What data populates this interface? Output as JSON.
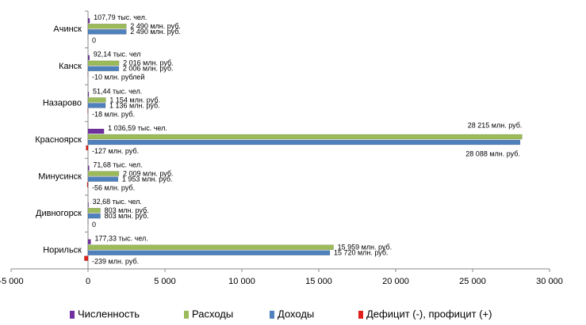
{
  "chart_data": {
    "type": "hbar",
    "categories": [
      "Ачинск",
      "Канск",
      "Назарово",
      "Красноярск",
      "Минусинск",
      "Дивногорск",
      "Норильск"
    ],
    "series": [
      {
        "name": "Численность",
        "color": "#7030a0",
        "values": [
          107.79,
          92.14,
          51.44,
          1036.59,
          71.68,
          32.68,
          177.33
        ],
        "value_labels": [
          "107,79 тыс. чел.",
          "92,14 тыс. чел",
          "51,44 тыс. чел.",
          "1 036,59 тыс. чел.",
          "71,68 тыс. чел.",
          "32,68 тыс. чел.",
          "177,33 тыс. чел."
        ]
      },
      {
        "name": "Расходы",
        "color": "#9bbb59",
        "values": [
          2490,
          2016,
          1154,
          28215,
          2009,
          803,
          15959
        ],
        "value_labels": [
          "2 490 млн. руб.",
          "2 016  млн. руб.",
          "1 154 млн. руб.",
          "28 215 млн. руб.",
          "2 009 млн. руб.",
          "803 млн. руб.",
          "15 959 млн. руб."
        ]
      },
      {
        "name": "Доходы",
        "color": "#4f81bd",
        "values": [
          2490,
          2006,
          1136,
          28088,
          1953,
          803,
          15720
        ],
        "value_labels": [
          "2 490 млн. руб.",
          "2 006 млн. руб.",
          "1 136 млн. руб.",
          "28 088 млн. руб.",
          "1 953 млн. руб.",
          "803 млн. руб.",
          "15 720 млн. руб."
        ]
      },
      {
        "name": "Дефицит (-), профицит (+)",
        "color": "#e0201b",
        "values": [
          0,
          -10,
          -18,
          -127,
          -56,
          0,
          -239
        ],
        "value_labels": [
          "0",
          "-10 млн. рублей",
          "-18 млн. руб.",
          "-127 млн. руб.",
          "-56 млн. руб.",
          "0",
          "-239 млн. руб."
        ]
      }
    ],
    "xlim": [
      -5000,
      30000
    ],
    "xticks": [
      {
        "value": -5000,
        "label": "-5 000"
      },
      0,
      {
        "value": 5000,
        "label": "5 000"
      },
      {
        "value": 10000,
        "label": "10 000"
      },
      {
        "value": 15000,
        "label": "15 000"
      },
      {
        "value": 20000,
        "label": "20 000"
      },
      {
        "value": 25000,
        "label": "25 000"
      },
      {
        "value": 30000,
        "label": "30 000"
      }
    ],
    "grid": false,
    "legend": "bottom"
  }
}
